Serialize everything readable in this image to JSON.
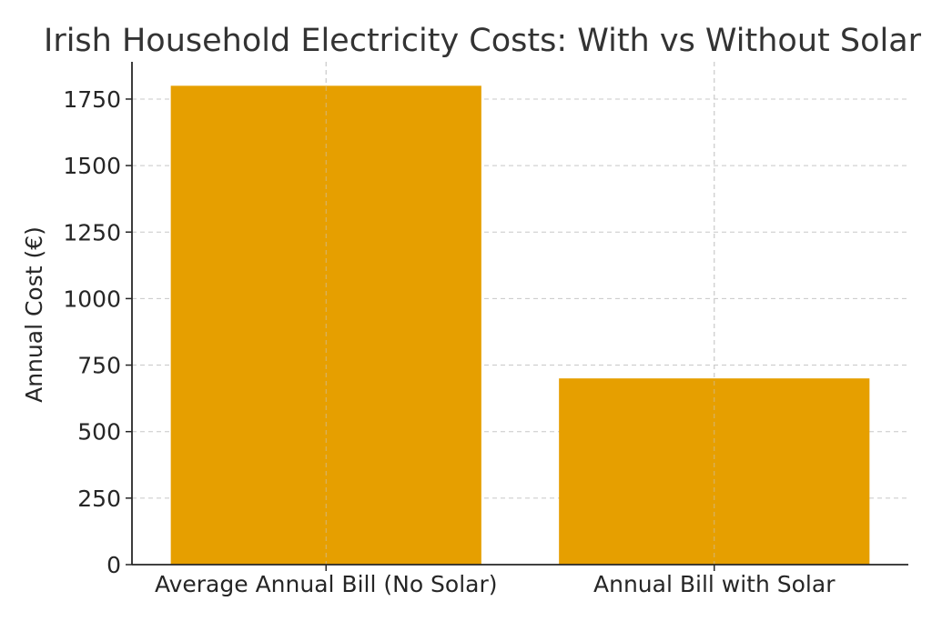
{
  "chart_data": {
    "type": "bar",
    "title": "Irish Household Electricity Costs: With vs Without Solar",
    "xlabel": "",
    "ylabel": "Annual Cost (€)",
    "categories": [
      "Average Annual Bill (No Solar)",
      "Annual Bill with Solar"
    ],
    "values": [
      1800,
      700
    ],
    "ylim": [
      0,
      1890
    ],
    "yticks": [
      0,
      250,
      500,
      750,
      1000,
      1250,
      1500,
      1750
    ],
    "grid": true,
    "bar_color": "#E69F00",
    "grid_color": "#c8c8c8",
    "axis_color": "#262626"
  }
}
